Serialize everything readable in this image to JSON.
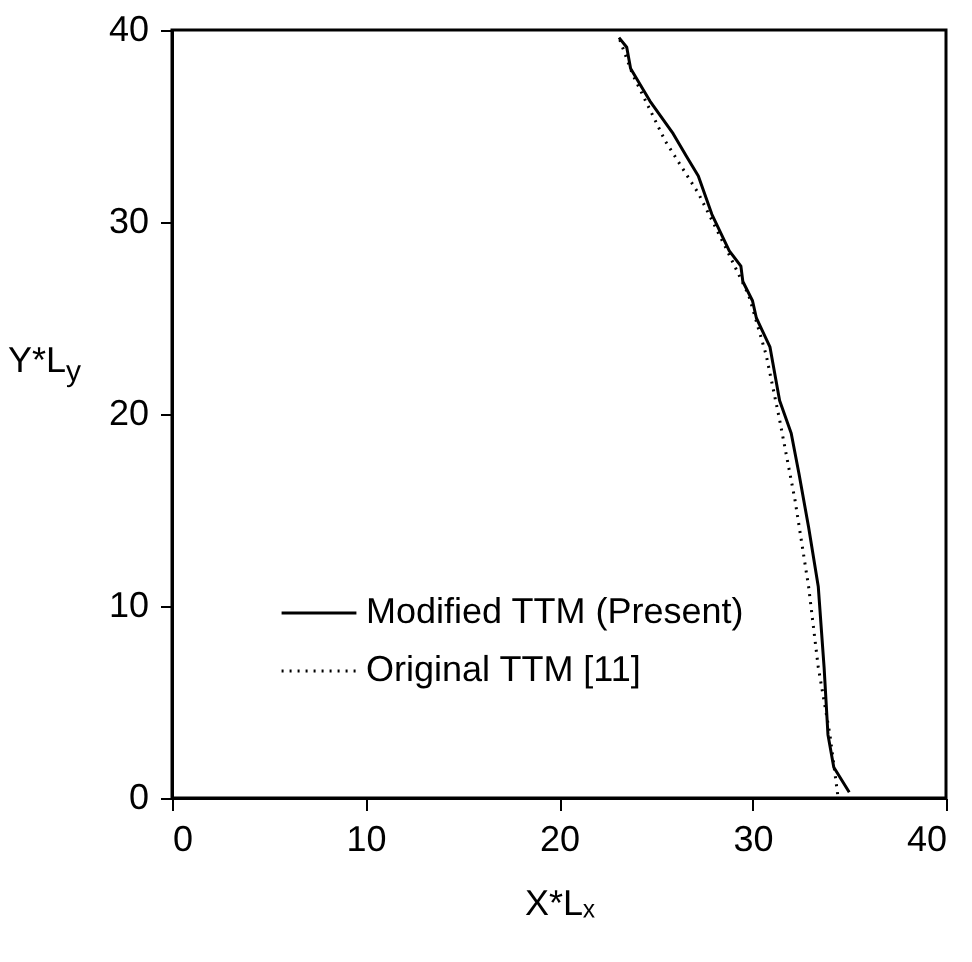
{
  "chart_data": {
    "type": "line",
    "xlabel": "X*Lₓ",
    "ylabel": "Y*L$_{y}$",
    "xlim": [
      0,
      40
    ],
    "ylim": [
      0,
      40
    ],
    "xticks": [
      0,
      10,
      20,
      30,
      40
    ],
    "yticks": [
      0,
      10,
      20,
      30,
      40
    ],
    "grid": false,
    "legend": "bottom left",
    "series": [
      {
        "name": "Modified TTM (Present)",
        "color": "#000000",
        "line_style": "solid",
        "x": [
          35.0,
          34.2,
          33.9,
          33.7,
          33.4,
          32.9,
          32.4,
          32.0,
          31.4,
          30.9,
          30.2,
          30.0,
          29.5,
          29.4,
          28.8,
          27.9,
          27.2,
          26.6,
          25.9,
          24.7,
          23.7,
          23.5,
          23.1
        ],
        "values": [
          0.3,
          1.6,
          3.3,
          6.8,
          11.0,
          14.1,
          16.9,
          19.0,
          20.7,
          23.5,
          25.0,
          25.9,
          26.9,
          27.7,
          28.5,
          30.4,
          32.4,
          33.4,
          34.6,
          36.3,
          38.0,
          39.1,
          39.6
        ]
      },
      {
        "name": "Original TTM [11]",
        "color": "#000000",
        "line_style": "dotted",
        "x": [
          34.4,
          34.0,
          33.4,
          32.9,
          32.2,
          31.4,
          30.7,
          29.8,
          28.6,
          27.2,
          25.5,
          23.8,
          23.1
        ],
        "values": [
          0.2,
          3.3,
          6.8,
          11.0,
          15.5,
          19.7,
          23.1,
          26.2,
          28.7,
          31.5,
          34.2,
          37.7,
          39.6
        ]
      }
    ]
  }
}
